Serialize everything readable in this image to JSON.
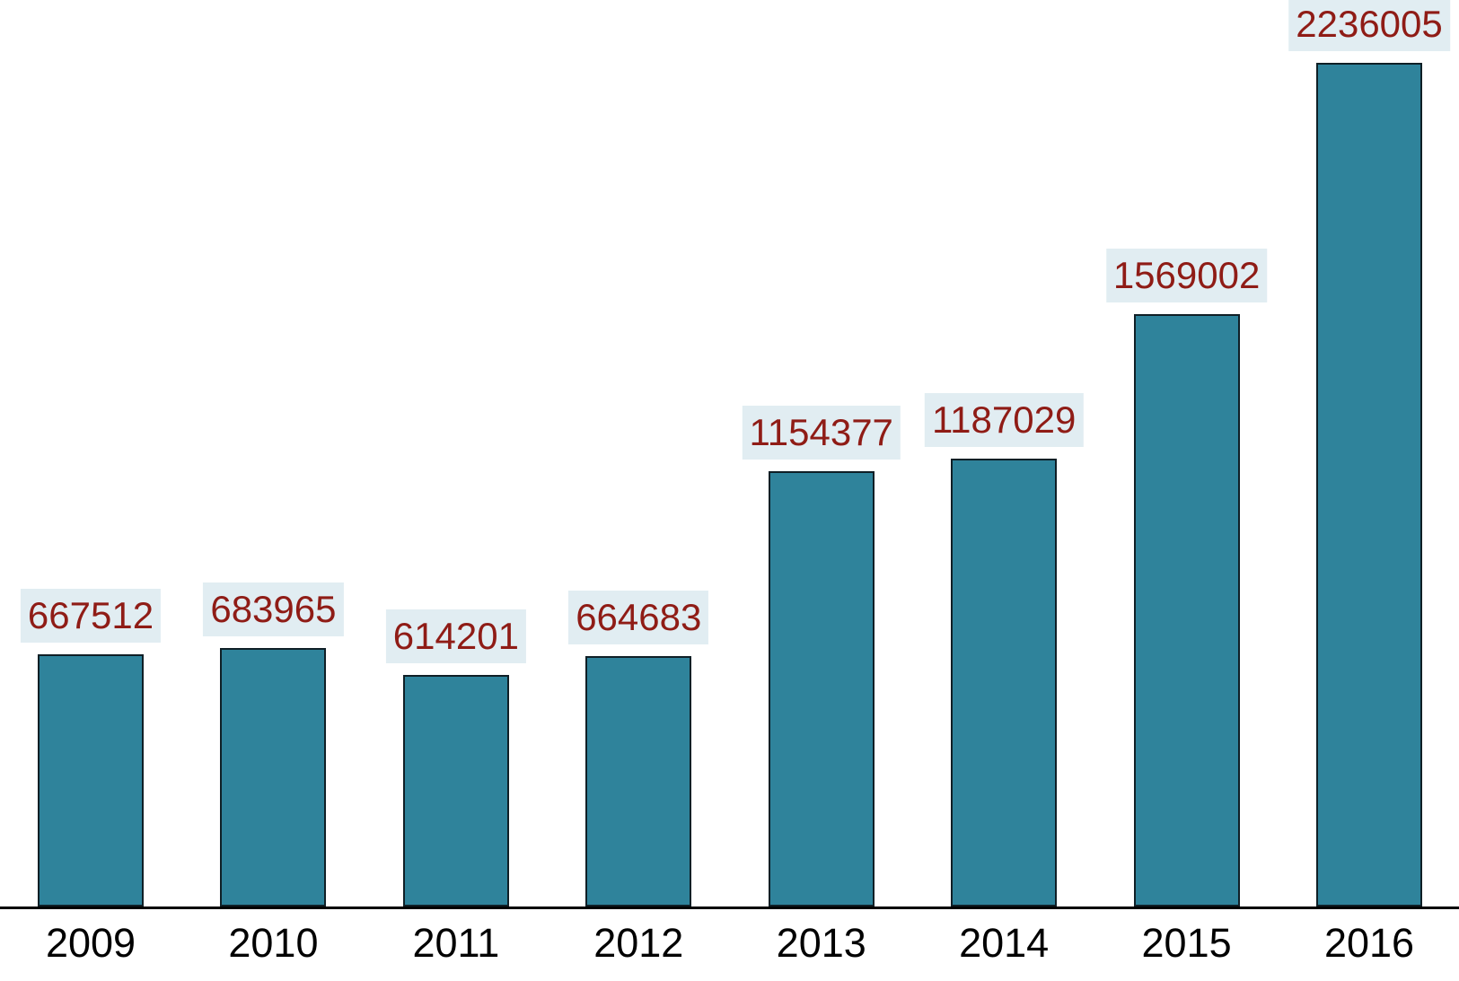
{
  "chart_data": {
    "type": "bar",
    "title": "",
    "xlabel": "",
    "ylabel": "",
    "categories": [
      "2009",
      "2010",
      "2011",
      "2012",
      "2013",
      "2014",
      "2015",
      "2016"
    ],
    "values": [
      667512,
      683965,
      614201,
      664683,
      1154377,
      1187029,
      1569002,
      2236005
    ],
    "value_labels": [
      "667512",
      "683965",
      "614201",
      "664683",
      "1154377",
      "1187029",
      "1569002",
      "2236005"
    ],
    "ylim": [
      0,
      2236005
    ],
    "grid": false,
    "legend": null,
    "colors": {
      "bar_fill": "#2f839b",
      "bar_border": "#0f1f26",
      "value_label_text": "#8f1c16",
      "value_label_bg": "#e1edf2",
      "axis_line": "#000000",
      "tick_label_text": "#000000",
      "background": "#ffffff"
    }
  }
}
